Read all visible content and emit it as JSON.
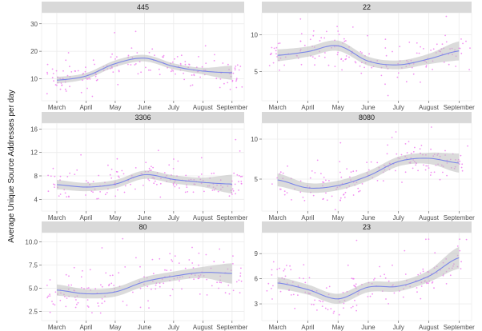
{
  "figure": {
    "ylabel": "Average Unique Source Addresses per day"
  },
  "colors": {
    "strip_bg": "#d9d9d9",
    "panel_bg": "#ffffff",
    "grid": "#ebebeb",
    "points": "#f07cf0",
    "line": "#7b86e8",
    "ribbon": "#bdbdbd"
  },
  "chart_data": [
    {
      "type": "scatter",
      "title": "445",
      "months": [
        "March",
        "April",
        "May",
        "June",
        "July",
        "August",
        "September"
      ],
      "yticks": [
        10,
        20,
        30
      ],
      "ylim": [
        2,
        34
      ],
      "smooth": [
        {
          "month": "March",
          "y": 9.5,
          "lo": 8.3,
          "hi": 10.7
        },
        {
          "month": "April",
          "y": 11.0,
          "lo": 9.9,
          "hi": 12.1
        },
        {
          "month": "May",
          "y": 15.5,
          "lo": 14.3,
          "hi": 16.7
        },
        {
          "month": "June",
          "y": 17.5,
          "lo": 16.3,
          "hi": 18.7
        },
        {
          "month": "July",
          "y": 14.5,
          "lo": 13.4,
          "hi": 15.6
        },
        {
          "month": "August",
          "y": 12.8,
          "lo": 11.6,
          "hi": 14.0
        },
        {
          "month": "September",
          "y": 12.2,
          "lo": 9.6,
          "hi": 14.8
        }
      ],
      "point_spread": 3.5
    },
    {
      "type": "scatter",
      "title": "22",
      "months": [
        "March",
        "April",
        "May",
        "June",
        "July",
        "August",
        "September"
      ],
      "yticks": [
        5,
        10
      ],
      "ylim": [
        1,
        13
      ],
      "smooth": [
        {
          "month": "March",
          "y": 7.2,
          "lo": 6.4,
          "hi": 8.0
        },
        {
          "month": "April",
          "y": 7.7,
          "lo": 7.0,
          "hi": 8.4
        },
        {
          "month": "May",
          "y": 8.5,
          "lo": 7.8,
          "hi": 9.2
        },
        {
          "month": "June",
          "y": 6.4,
          "lo": 5.8,
          "hi": 7.0
        },
        {
          "month": "July",
          "y": 5.9,
          "lo": 5.3,
          "hi": 6.5
        },
        {
          "month": "August",
          "y": 6.7,
          "lo": 6.0,
          "hi": 7.4
        },
        {
          "month": "September",
          "y": 7.8,
          "lo": 6.5,
          "hi": 9.1
        }
      ],
      "point_spread": 1.6
    },
    {
      "type": "scatter",
      "title": "3306",
      "months": [
        "March",
        "April",
        "May",
        "June",
        "July",
        "August",
        "September"
      ],
      "yticks": [
        4,
        8,
        12,
        16
      ],
      "ylim": [
        2,
        17
      ],
      "smooth": [
        {
          "month": "March",
          "y": 6.5,
          "lo": 5.7,
          "hi": 7.3
        },
        {
          "month": "April",
          "y": 6.1,
          "lo": 5.4,
          "hi": 6.8
        },
        {
          "month": "May",
          "y": 6.6,
          "lo": 5.9,
          "hi": 7.3
        },
        {
          "month": "June",
          "y": 8.2,
          "lo": 7.5,
          "hi": 8.9
        },
        {
          "month": "July",
          "y": 7.4,
          "lo": 6.7,
          "hi": 8.1
        },
        {
          "month": "August",
          "y": 6.9,
          "lo": 6.1,
          "hi": 7.7
        },
        {
          "month": "September",
          "y": 6.6,
          "lo": 5.0,
          "hi": 8.2
        }
      ],
      "point_spread": 1.6
    },
    {
      "type": "scatter",
      "title": "8080",
      "months": [
        "March",
        "April",
        "May",
        "June",
        "July",
        "August",
        "September"
      ],
      "yticks": [
        5,
        10
      ],
      "ylim": [
        1,
        12
      ],
      "smooth": [
        {
          "month": "March",
          "y": 4.9,
          "lo": 4.1,
          "hi": 5.7
        },
        {
          "month": "April",
          "y": 3.9,
          "lo": 3.3,
          "hi": 4.5
        },
        {
          "month": "May",
          "y": 4.2,
          "lo": 3.6,
          "hi": 4.8
        },
        {
          "month": "June",
          "y": 5.4,
          "lo": 4.8,
          "hi": 6.0
        },
        {
          "month": "July",
          "y": 7.2,
          "lo": 6.6,
          "hi": 7.8
        },
        {
          "month": "August",
          "y": 7.6,
          "lo": 6.9,
          "hi": 8.3
        },
        {
          "month": "September",
          "y": 7.0,
          "lo": 5.8,
          "hi": 8.2
        }
      ],
      "point_spread": 1.4
    },
    {
      "type": "scatter",
      "title": "80",
      "months": [
        "March",
        "April",
        "May",
        "June",
        "July",
        "August",
        "September"
      ],
      "yticks": [
        2.5,
        5.0,
        7.5,
        10.0
      ],
      "ylim": [
        1.5,
        11
      ],
      "smooth": [
        {
          "month": "March",
          "y": 4.8,
          "lo": 4.2,
          "hi": 5.4
        },
        {
          "month": "April",
          "y": 4.4,
          "lo": 3.9,
          "hi": 4.9
        },
        {
          "month": "May",
          "y": 4.6,
          "lo": 4.1,
          "hi": 5.1
        },
        {
          "month": "June",
          "y": 5.7,
          "lo": 5.2,
          "hi": 6.2
        },
        {
          "month": "July",
          "y": 6.3,
          "lo": 5.8,
          "hi": 6.8
        },
        {
          "month": "August",
          "y": 6.7,
          "lo": 6.1,
          "hi": 7.3
        },
        {
          "month": "September",
          "y": 6.6,
          "lo": 5.5,
          "hi": 7.7
        }
      ],
      "point_spread": 1.5
    },
    {
      "type": "scatter",
      "title": "23",
      "months": [
        "March",
        "April",
        "May",
        "June",
        "July",
        "August",
        "September"
      ],
      "yticks": [
        3,
        6,
        9
      ],
      "ylim": [
        1,
        11.5
      ],
      "smooth": [
        {
          "month": "March",
          "y": 5.5,
          "lo": 4.8,
          "hi": 6.2
        },
        {
          "month": "April",
          "y": 4.7,
          "lo": 4.1,
          "hi": 5.3
        },
        {
          "month": "May",
          "y": 3.6,
          "lo": 3.0,
          "hi": 4.2
        },
        {
          "month": "June",
          "y": 5.0,
          "lo": 4.4,
          "hi": 5.6
        },
        {
          "month": "July",
          "y": 5.1,
          "lo": 4.5,
          "hi": 5.7
        },
        {
          "month": "August",
          "y": 6.3,
          "lo": 5.6,
          "hi": 7.0
        },
        {
          "month": "September",
          "y": 8.5,
          "lo": 7.2,
          "hi": 9.8
        }
      ],
      "point_spread": 1.5
    }
  ]
}
